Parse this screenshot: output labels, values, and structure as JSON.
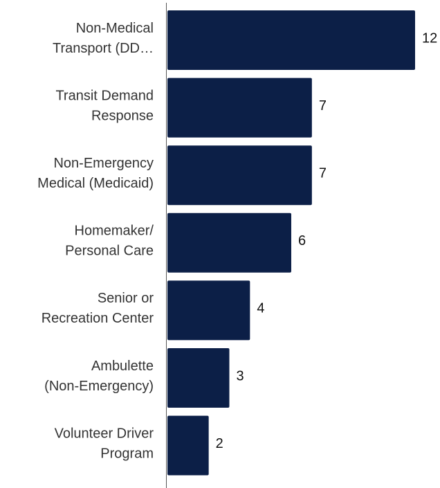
{
  "chart_data": {
    "type": "bar",
    "orientation": "horizontal",
    "categories": [
      [
        "Non-Medical",
        "Transport (DD…"
      ],
      [
        "Transit Demand",
        "Response"
      ],
      [
        "Non-Emergency",
        "Medical (Medicaid)"
      ],
      [
        "Homemaker/",
        "Personal Care"
      ],
      [
        "Senior or",
        "Recreation Center"
      ],
      [
        "Ambulette",
        "(Non-Emergency)"
      ],
      [
        "Volunteer Driver",
        "Program"
      ]
    ],
    "values": [
      12,
      7,
      7,
      6,
      4,
      3,
      2
    ],
    "color": "#0c1f47"
  }
}
